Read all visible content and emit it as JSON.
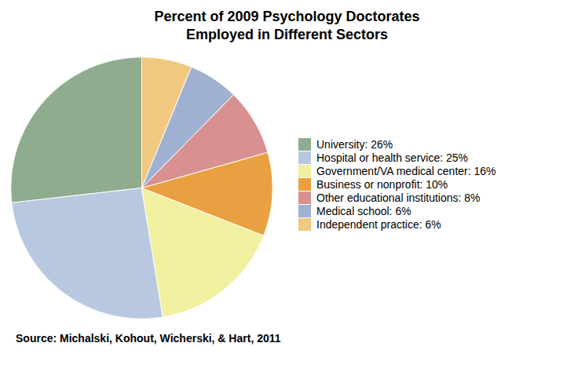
{
  "chart_data": {
    "type": "pie",
    "title": "Percent of 2009 Psychology Doctorates\nEmployed in Different Sectors",
    "annotations": [
      "Source: Michalski, Kohout, Wicherski, & Hart, 2011"
    ],
    "categories": [
      "University: 26%",
      "Hospital or health service: 25%",
      "Government/VA medical center: 16%",
      "Business or nonprofit: 10%",
      "Other educational institutions: 8%",
      "Medical school: 6%",
      "Independent practice: 6%"
    ],
    "values": [
      26,
      25,
      16,
      10,
      8,
      6,
      6
    ],
    "colors": [
      "#8fac8f",
      "#b8c8e0",
      "#f0f0a0",
      "#e8a040",
      "#d89090",
      "#a0b0d0",
      "#f0c880"
    ],
    "legend": "right"
  }
}
